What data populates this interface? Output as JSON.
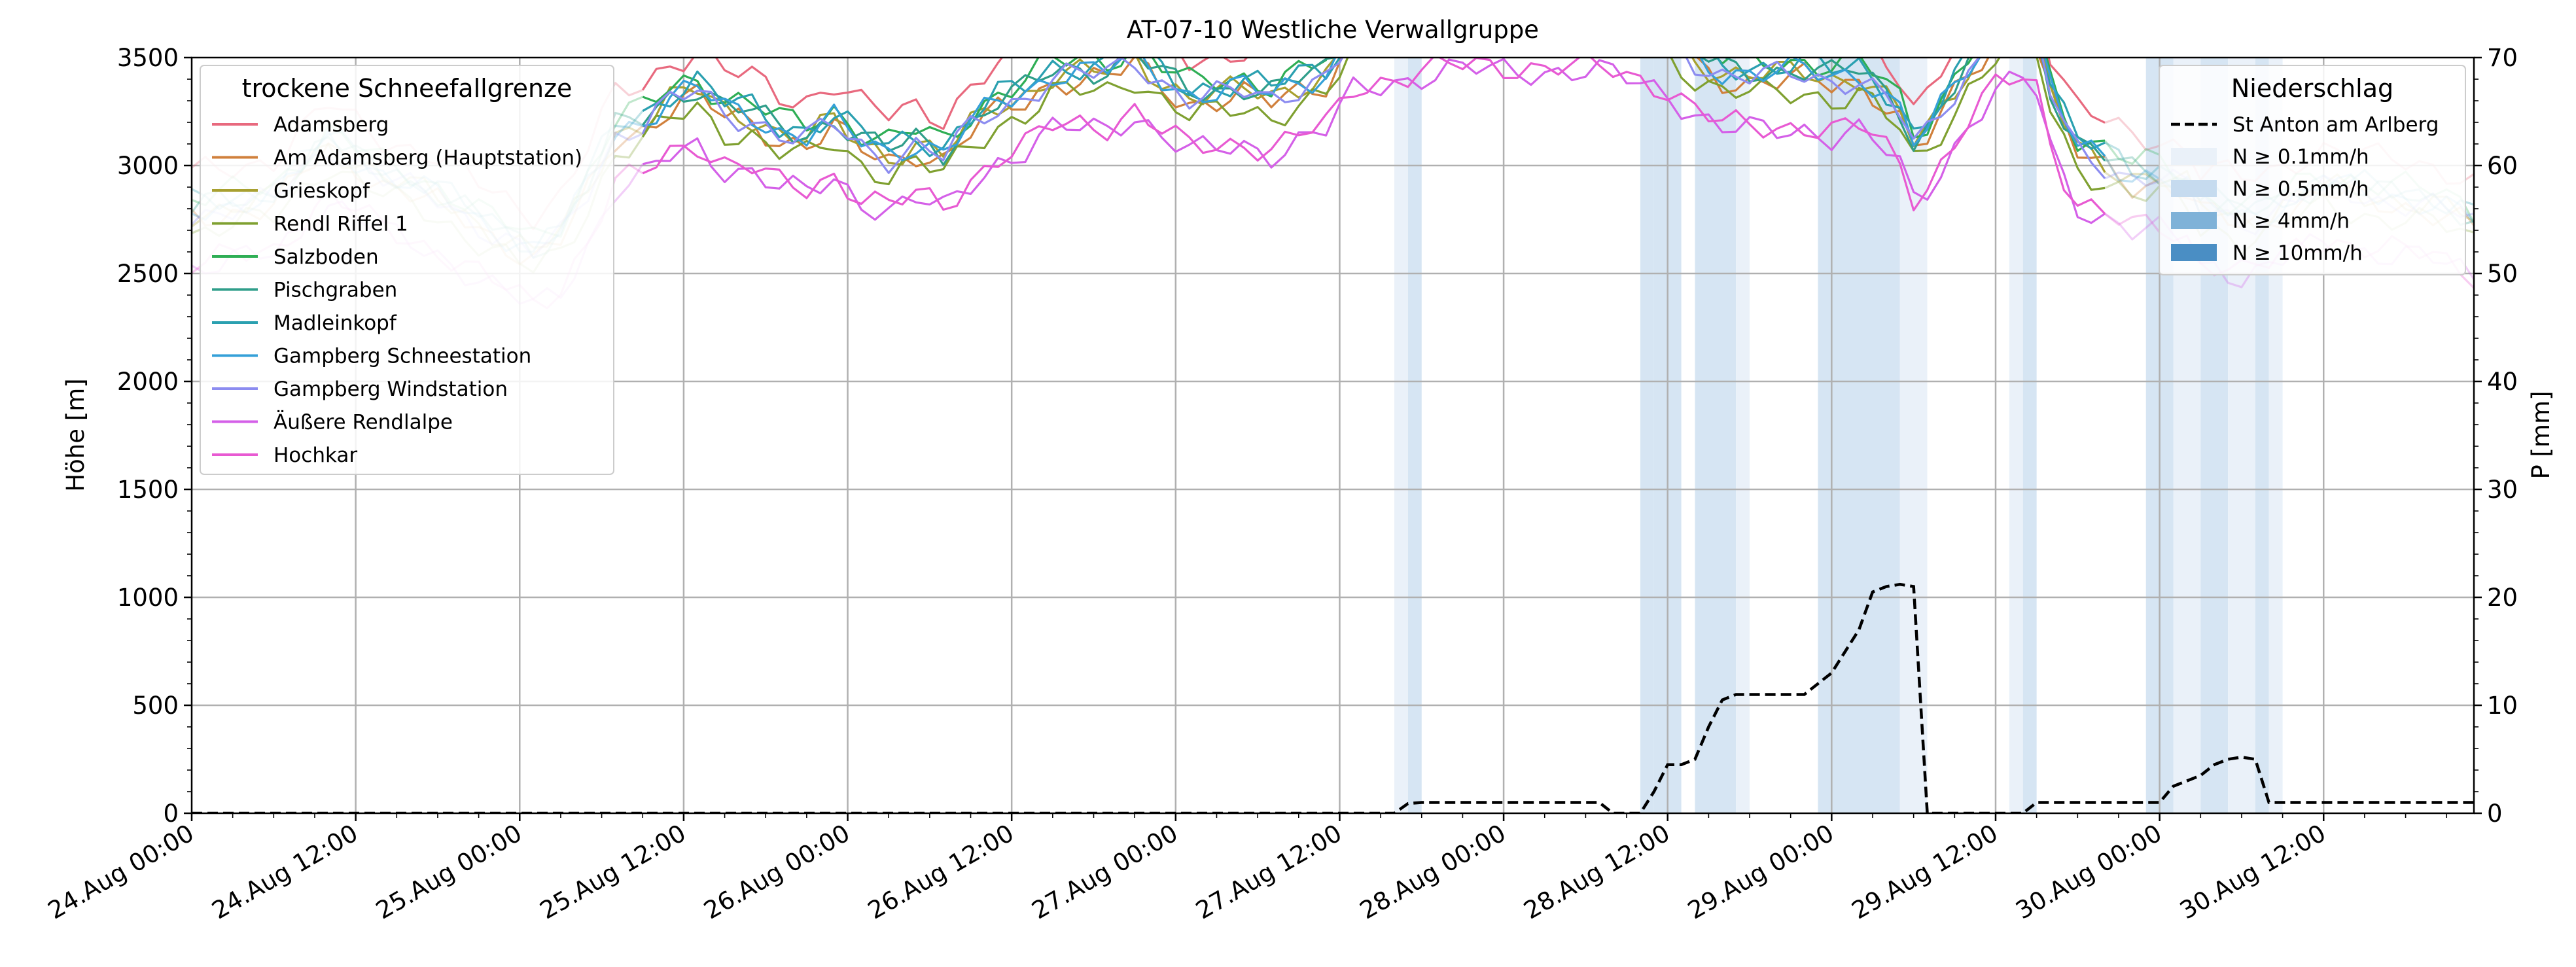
{
  "chart_data": {
    "type": "line",
    "title": "AT-07-10 Westliche Verwallgruppe",
    "ylabel": "Höhe [m]",
    "y2label": "P [mm]",
    "ylim": [
      0,
      3500
    ],
    "y2lim": [
      0,
      70
    ],
    "yticks": [
      0,
      500,
      1000,
      1500,
      2000,
      2500,
      3000,
      3500
    ],
    "y2ticks": [
      0,
      10,
      20,
      30,
      40,
      50,
      60,
      70
    ],
    "x_unit": "hours since 24.Aug 00:00",
    "xlim": [
      0,
      167
    ],
    "xtick_labels": [
      "24.Aug 00:00",
      "24.Aug 12:00",
      "25.Aug 00:00",
      "25.Aug 12:00",
      "26.Aug 00:00",
      "26.Aug 12:00",
      "27.Aug 00:00",
      "27.Aug 12:00",
      "28.Aug 00:00",
      "28.Aug 12:00",
      "29.Aug 00:00",
      "29.Aug 12:00",
      "30.Aug 00:00",
      "30.Aug 12:00"
    ],
    "grid": true,
    "legend_left": {
      "title": "trockene Schneefallgrenze",
      "placement": "upper-left",
      "entries": [
        "Adamsberg",
        "Am Adamsberg (Hauptstation)",
        "Grieskopf",
        "Rendl Riffel 1",
        "Salzboden",
        "Pischgraben",
        "Madleinkopf",
        "Gampberg Schneestation",
        "Gampberg Windstation",
        "Äußere Rendlalpe",
        "Hochkar"
      ]
    },
    "legend_right": {
      "title": "Niederschlag",
      "placement": "upper-right",
      "line_label": "St Anton am Arlberg",
      "band_labels": [
        "N ≥ 0.1mm/h",
        "N ≥ 0.5mm/h",
        "N ≥ 4mm/h",
        "N ≥ 10mm/h"
      ]
    },
    "series": [
      {
        "name": "Adamsberg",
        "color": "#e8697e",
        "offset": 180,
        "fade": 0.3
      },
      {
        "name": "Am Adamsberg (Hauptstation)",
        "color": "#d0803c",
        "offset": -30,
        "fade": 0.3
      },
      {
        "name": "Grieskopf",
        "color": "#a8a030",
        "offset": 0,
        "fade": 0.3
      },
      {
        "name": "Rendl Riffel 1",
        "color": "#7fa030",
        "offset": -90,
        "fade": 0.3
      },
      {
        "name": "Salzboden",
        "color": "#2fae55",
        "offset": 60,
        "fade": 0.3
      },
      {
        "name": "Pischgraben",
        "color": "#2f9e8a",
        "offset": 20,
        "fade": 0.3
      },
      {
        "name": "Madleinkopf",
        "color": "#2aa0b0",
        "offset": 40,
        "fade": 0.3
      },
      {
        "name": "Gampberg Schneestation",
        "color": "#35a0d8",
        "offset": 10,
        "fade": 0.3
      },
      {
        "name": "Gampberg Windstation",
        "color": "#8c8cf0",
        "offset": -10,
        "fade": 0.3
      },
      {
        "name": "Äußere Rendlalpe",
        "color": "#d460e8",
        "offset": -260,
        "fade": 0.3
      },
      {
        "name": "Hochkar",
        "color": "#e85ad2",
        "offset": -240,
        "fade": 0.3
      }
    ],
    "base_profile": [
      [
        0,
        2780
      ],
      [
        6,
        2850
      ],
      [
        10,
        3100
      ],
      [
        14,
        2950
      ],
      [
        18,
        2850
      ],
      [
        22,
        2700
      ],
      [
        25,
        2600
      ],
      [
        27,
        2680
      ],
      [
        29,
        2900
      ],
      [
        31,
        3150
      ],
      [
        33,
        3200
      ],
      [
        35,
        3300
      ],
      [
        37,
        3350
      ],
      [
        39,
        3250
      ],
      [
        41,
        3230
      ],
      [
        43,
        3150
      ],
      [
        45,
        3130
      ],
      [
        47,
        3200
      ],
      [
        49,
        3100
      ],
      [
        51,
        3050
      ],
      [
        53,
        3100
      ],
      [
        55,
        3050
      ],
      [
        57,
        3180
      ],
      [
        59,
        3280
      ],
      [
        61,
        3330
      ],
      [
        63,
        3420
      ],
      [
        65,
        3430
      ],
      [
        67,
        3430
      ],
      [
        69,
        3500
      ],
      [
        71,
        3400
      ],
      [
        73,
        3320
      ],
      [
        75,
        3330
      ],
      [
        77,
        3350
      ],
      [
        79,
        3320
      ],
      [
        81,
        3380
      ],
      [
        83,
        3420
      ],
      [
        85,
        3600
      ],
      [
        88,
        3650
      ],
      [
        92,
        3700
      ],
      [
        100,
        3700
      ],
      [
        104,
        3680
      ],
      [
        108,
        3600
      ],
      [
        110,
        3500
      ],
      [
        112,
        3430
      ],
      [
        114,
        3420
      ],
      [
        116,
        3420
      ],
      [
        118,
        3430
      ],
      [
        120,
        3400
      ],
      [
        122,
        3420
      ],
      [
        123.5,
        3350
      ],
      [
        125,
        3250
      ],
      [
        126,
        3100
      ],
      [
        127,
        3150
      ],
      [
        128,
        3250
      ],
      [
        130,
        3450
      ],
      [
        132,
        3600
      ],
      [
        134,
        3650
      ],
      [
        135,
        3600
      ],
      [
        136,
        3350
      ],
      [
        137,
        3200
      ],
      [
        138,
        3080
      ],
      [
        140,
        3020
      ],
      [
        142,
        2950
      ],
      [
        144,
        2950
      ],
      [
        146,
        2900
      ],
      [
        147,
        2800
      ],
      [
        148,
        2800
      ],
      [
        150,
        2750
      ],
      [
        152,
        2780
      ],
      [
        154,
        2850
      ],
      [
        156,
        2900
      ],
      [
        158,
        2880
      ],
      [
        160,
        2850
      ],
      [
        162,
        2840
      ],
      [
        164,
        2820
      ],
      [
        166,
        2780
      ],
      [
        167,
        2740
      ]
    ],
    "fade_ranges": [
      [
        0,
        32
      ],
      [
        140,
        167
      ]
    ],
    "precip_line": [
      [
        0,
        0
      ],
      [
        88,
        0
      ],
      [
        89,
        0.9
      ],
      [
        90,
        1
      ],
      [
        103,
        1
      ],
      [
        104,
        0
      ],
      [
        106,
        0
      ],
      [
        107,
        2
      ],
      [
        108,
        4.5
      ],
      [
        109,
        4.5
      ],
      [
        110,
        5
      ],
      [
        111,
        8
      ],
      [
        112,
        10.5
      ],
      [
        113,
        11
      ],
      [
        118,
        11
      ],
      [
        119,
        12
      ],
      [
        120,
        13
      ],
      [
        121,
        15
      ],
      [
        122,
        17
      ],
      [
        123,
        20.5
      ],
      [
        124,
        21
      ],
      [
        125,
        21.2
      ],
      [
        126,
        21
      ],
      [
        127,
        0
      ],
      [
        134,
        0
      ],
      [
        135,
        1
      ],
      [
        139,
        1
      ],
      [
        144,
        1
      ],
      [
        145,
        2.5
      ],
      [
        146,
        3
      ],
      [
        147,
        3.5
      ],
      [
        148,
        4.5
      ],
      [
        149,
        5
      ],
      [
        150,
        5.2
      ],
      [
        151,
        5
      ],
      [
        152,
        1
      ],
      [
        153,
        1
      ],
      [
        167,
        1
      ]
    ],
    "precip_bands": [
      {
        "start": 88,
        "end": 89,
        "level": "N ≥ 0.1mm/h"
      },
      {
        "start": 89,
        "end": 90,
        "level": "N ≥ 0.5mm/h"
      },
      {
        "start": 106,
        "end": 107,
        "level": "N ≥ 0.5mm/h"
      },
      {
        "start": 107,
        "end": 109,
        "level": "N ≥ 0.5mm/h"
      },
      {
        "start": 110,
        "end": 113,
        "level": "N ≥ 0.5mm/h"
      },
      {
        "start": 113,
        "end": 114,
        "level": "N ≥ 0.1mm/h"
      },
      {
        "start": 119,
        "end": 125,
        "level": "N ≥ 0.5mm/h"
      },
      {
        "start": 125,
        "end": 127,
        "level": "N ≥ 0.1mm/h"
      },
      {
        "start": 133,
        "end": 134,
        "level": "N ≥ 0.1mm/h"
      },
      {
        "start": 134,
        "end": 135,
        "level": "N ≥ 0.5mm/h"
      },
      {
        "start": 143,
        "end": 145,
        "level": "N ≥ 0.5mm/h"
      },
      {
        "start": 145,
        "end": 147,
        "level": "N ≥ 0.1mm/h"
      },
      {
        "start": 147,
        "end": 149,
        "level": "N ≥ 0.5mm/h"
      },
      {
        "start": 149,
        "end": 151,
        "level": "N ≥ 0.1mm/h"
      },
      {
        "start": 151,
        "end": 152,
        "level": "N ≥ 0.5mm/h"
      },
      {
        "start": 152,
        "end": 153,
        "level": "N ≥ 0.1mm/h"
      }
    ],
    "colors": {
      "band_0.1": "#eaf1f9",
      "band_0.5": "#d6e5f3",
      "band_4": "#7fb2d8",
      "band_10": "#4a8ec4",
      "precip_line": "#000000",
      "grid": "#b0b0b0"
    }
  }
}
